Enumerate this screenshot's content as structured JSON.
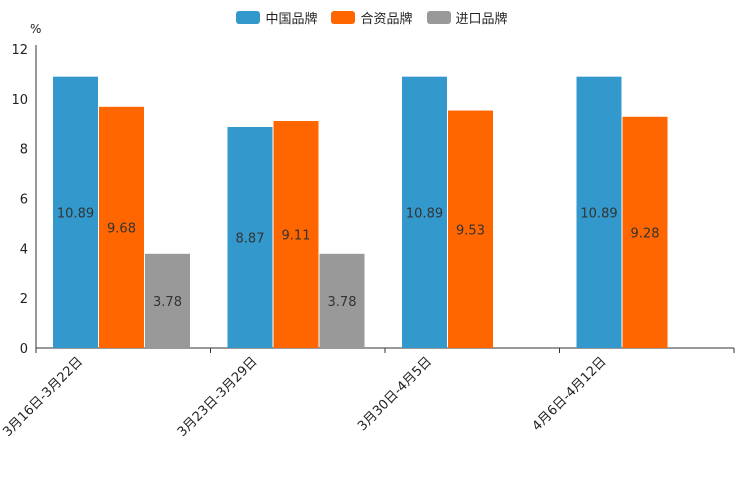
{
  "chart_data": {
    "type": "bar",
    "unit_label": "%",
    "categories": [
      "3月16日-3月22日",
      "3月23日-3月29日",
      "3月30日-4月5日",
      "4月6日-4月12日"
    ],
    "series": [
      {
        "name": "中国品牌",
        "color": "#3399cc",
        "values": [
          10.89,
          8.87,
          10.89,
          10.89
        ]
      },
      {
        "name": "合资品牌",
        "color": "#ff6600",
        "values": [
          9.68,
          9.11,
          9.53,
          9.28
        ]
      },
      {
        "name": "进口品牌",
        "color": "#999999",
        "values": [
          3.78,
          3.78,
          null,
          null
        ]
      }
    ],
    "ylim": [
      0,
      12
    ],
    "yticks": [
      0,
      2,
      4,
      6,
      8,
      10,
      12
    ],
    "legend_position": "top-center",
    "grid": false
  }
}
